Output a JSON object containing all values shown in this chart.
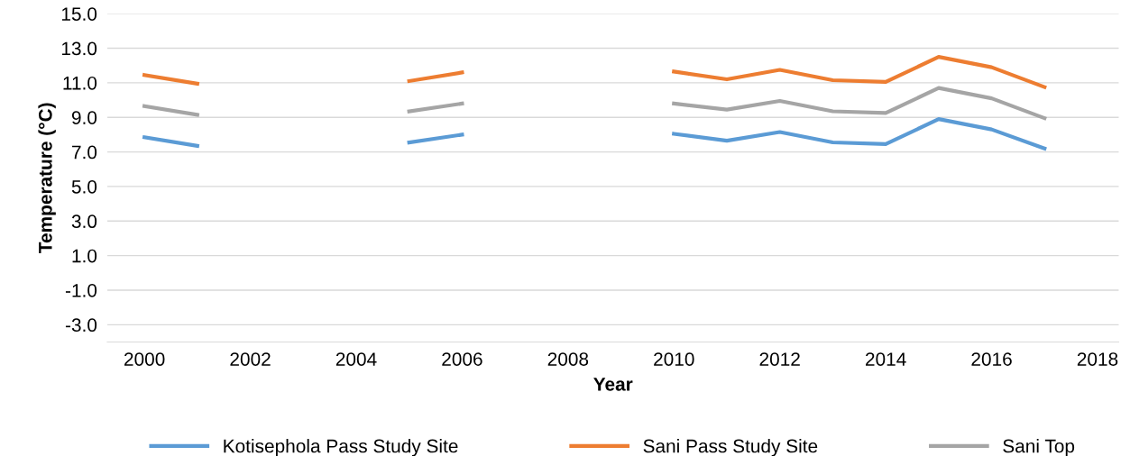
{
  "chart_data": {
    "type": "line",
    "xlabel": "Year",
    "ylabel": "Temperature (°C)",
    "x": [
      2000,
      2001,
      2002,
      2003,
      2004,
      2005,
      2006,
      2007,
      2008,
      2009,
      2010,
      2011,
      2012,
      2013,
      2014,
      2015,
      2016,
      2017
    ],
    "series": [
      {
        "name": "Kotisephola Pass Study Site",
        "color": "#5b9bd5",
        "values": [
          7.85,
          7.35,
          null,
          null,
          null,
          7.55,
          8.0,
          null,
          null,
          null,
          8.05,
          7.65,
          8.15,
          7.55,
          7.45,
          8.9,
          8.3,
          7.2
        ]
      },
      {
        "name": "Sani Pass Study Site",
        "color": "#ed7d31",
        "values": [
          11.45,
          10.95,
          null,
          null,
          null,
          11.1,
          11.6,
          null,
          null,
          null,
          11.65,
          11.2,
          11.75,
          11.15,
          11.05,
          12.5,
          11.9,
          10.75
        ]
      },
      {
        "name": "Sani Top",
        "color": "#a5a5a5",
        "values": [
          9.65,
          9.15,
          null,
          null,
          null,
          9.35,
          9.8,
          null,
          null,
          null,
          9.8,
          9.45,
          9.95,
          9.35,
          9.25,
          10.7,
          10.1,
          8.95
        ]
      }
    ],
    "xlim": [
      1999.3,
      2018.4
    ],
    "xticks": [
      2000,
      2002,
      2004,
      2006,
      2008,
      2010,
      2012,
      2014,
      2016,
      2018
    ],
    "ylim": [
      -4.0,
      15.0
    ],
    "yticks": [
      {
        "value": -3,
        "label": "-3.0"
      },
      {
        "value": -1,
        "label": "-1.0"
      },
      {
        "value": 1,
        "label": "1.0"
      },
      {
        "value": 3,
        "label": "3.0"
      },
      {
        "value": 5,
        "label": "5.0"
      },
      {
        "value": 7,
        "label": "7.0"
      },
      {
        "value": 9,
        "label": "9.0"
      },
      {
        "value": 11,
        "label": "11.0"
      },
      {
        "value": 13,
        "label": "13.0"
      },
      {
        "value": 15,
        "label": "15.0"
      }
    ],
    "grid": "y",
    "legend": "bottom",
    "marker": "none",
    "line_style": "solid"
  }
}
